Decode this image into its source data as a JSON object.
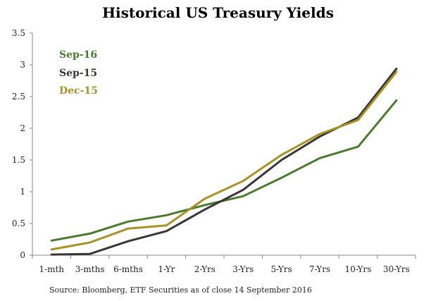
{
  "chart_data": {
    "type": "line",
    "title": "Historical US Treasury Yields",
    "source": "Source: Bloomberg, ETF Securities as of close 14 September 2016",
    "categories": [
      "1-mth",
      "3-mths",
      "6-mths",
      "1-Yr",
      "2-Yrs",
      "3-Yrs",
      "5-Yrs",
      "7-Yrs",
      "10-Yrs",
      "30-Yrs"
    ],
    "ylim": [
      0,
      3.5
    ],
    "yticks": [
      "0",
      "0.5",
      "1",
      "1.5",
      "2",
      "2.5",
      "3",
      "3.5"
    ],
    "grid": false,
    "legend_placement": "top-left",
    "series": [
      {
        "name": "Sep-16",
        "color": "#4a7a2c",
        "values": [
          0.23,
          0.34,
          0.53,
          0.63,
          0.79,
          0.93,
          1.22,
          1.53,
          1.71,
          2.44
        ]
      },
      {
        "name": "Sep-15",
        "color": "#3b3535",
        "values": [
          0.01,
          0.02,
          0.22,
          0.38,
          0.72,
          1.03,
          1.5,
          1.87,
          2.17,
          2.94
        ]
      },
      {
        "name": "Dec-15",
        "color": "#a89224",
        "values": [
          0.09,
          0.2,
          0.42,
          0.47,
          0.89,
          1.17,
          1.58,
          1.91,
          2.13,
          2.89
        ]
      }
    ]
  }
}
